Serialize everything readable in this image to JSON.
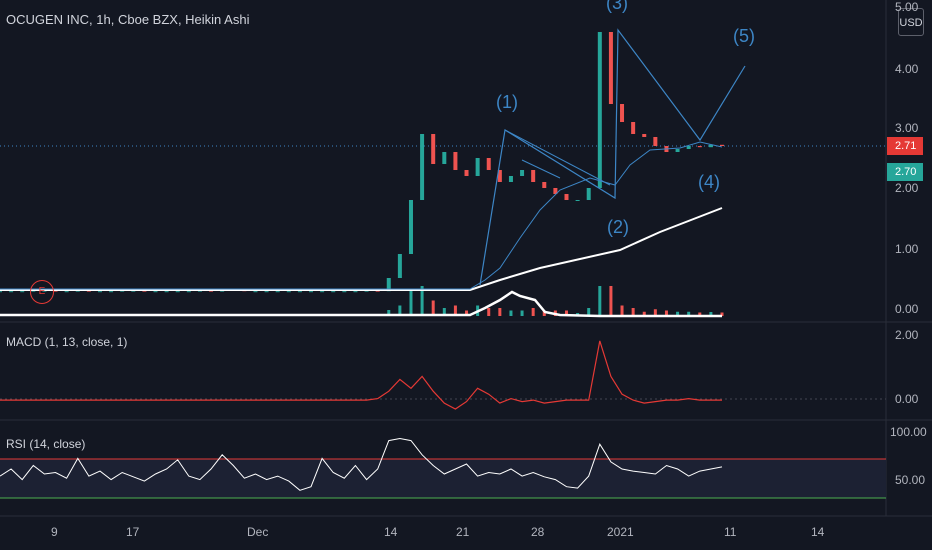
{
  "header": {
    "title": "OCUGEN INC, 1h, Cboe BZX, Heikin Ashi",
    "currency_button": "USD"
  },
  "price_tags": {
    "last": "2.71",
    "last_color": "#e53935",
    "close": "2.70",
    "close_color": "#26a69a"
  },
  "panes": {
    "macd_label": "MACD (1, 13, close, 1)",
    "rsi_label": "RSI (14, close)"
  },
  "earnings_marker": "E",
  "colors": {
    "background": "#131722",
    "wave_blue": "#3d86c6",
    "macd_red": "#e53935",
    "rsi_upper": "#e53935",
    "rsi_lower": "#4caf50",
    "ma_white": "#ffffff"
  },
  "chart_data": [
    {
      "type": "line",
      "subtype": "candlestick-heikin-ashi",
      "title": "OCUGEN INC, 1h, Cboe BZX, Heikin Ashi",
      "y_ticks": [
        "5.00",
        "4.00",
        "3.00",
        "2.00",
        "1.00",
        "0.00"
      ],
      "ylim": [
        0,
        5
      ],
      "x_ticks": [
        "9",
        "17",
        "Dec",
        "14",
        "21",
        "28",
        "2021",
        "11",
        "14"
      ],
      "elliott_wave_labels": [
        "(1)",
        "(2)",
        "(3)",
        "(4)",
        "(5)"
      ],
      "series": [
        {
          "values": [
            0.28,
            0.28,
            0.28,
            0.29,
            0.29,
            0.28,
            0.28,
            0.29,
            0.28,
            0.28,
            0.28,
            0.29,
            0.29,
            0.28,
            0.28,
            0.28,
            0.28,
            0.28,
            0.29,
            0.28,
            0.29,
            0.3,
            0.28,
            0.28,
            0.28,
            0.28,
            0.28,
            0.28,
            0.28,
            0.28,
            0.28,
            0.28,
            0.28,
            0.29,
            0.28,
            0.5,
            0.9,
            1.8,
            2.9,
            2.4,
            2.6,
            2.3,
            2.2,
            2.5,
            2.3,
            2.1,
            2.2,
            2.3,
            2.1,
            2.0,
            1.9,
            1.8,
            1.8,
            2.0,
            4.6,
            3.4,
            3.1,
            2.9,
            2.85,
            2.7,
            2.6,
            2.65,
            2.7,
            2.68,
            2.72,
            2.7
          ]
        }
      ]
    },
    {
      "type": "line",
      "title": "MACD (1, 13, close, 1)",
      "y_ticks": [
        "2.00",
        "0.00"
      ],
      "ylim": [
        -0.3,
        2.2
      ],
      "series": [
        {
          "values": [
            0,
            0,
            0,
            0,
            0,
            0,
            0,
            0,
            0,
            0,
            0,
            0,
            0,
            0,
            0,
            0,
            0,
            0,
            0,
            0,
            0,
            0,
            0,
            0,
            0,
            0,
            0,
            0,
            0,
            0,
            0,
            0,
            0,
            0,
            0.05,
            0.3,
            0.7,
            0.4,
            0.8,
            0.3,
            -0.1,
            -0.3,
            -0.05,
            0.4,
            0.2,
            -0.1,
            0.05,
            -0.05,
            0.0,
            -0.1,
            -0.05,
            0.0,
            0.0,
            0.0,
            2.0,
            0.8,
            0.2,
            0.0,
            -0.1,
            -0.05,
            0.0,
            0.0,
            0.05,
            0.0,
            0.0,
            0.0
          ]
        }
      ]
    },
    {
      "type": "line",
      "title": "RSI (14, close)",
      "y_ticks": [
        "100.00",
        "50.00"
      ],
      "ylim": [
        0,
        110
      ],
      "reference_lines": [
        70,
        30
      ],
      "series": [
        {
          "values": [
            45,
            55,
            40,
            60,
            48,
            50,
            42,
            70,
            45,
            52,
            40,
            50,
            44,
            38,
            48,
            55,
            68,
            45,
            40,
            55,
            75,
            60,
            42,
            48,
            40,
            45,
            38,
            25,
            30,
            70,
            50,
            42,
            60,
            40,
            55,
            95,
            98,
            95,
            75,
            60,
            48,
            55,
            62,
            45,
            50,
            48,
            55,
            45,
            50,
            44,
            40,
            30,
            28,
            45,
            90,
            65,
            55,
            52,
            50,
            48,
            60,
            55,
            45,
            52,
            55,
            58
          ]
        }
      ]
    }
  ]
}
